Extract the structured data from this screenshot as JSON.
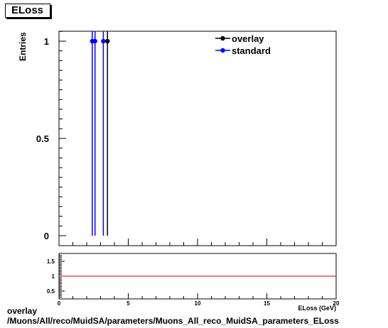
{
  "title": "ELoss",
  "caption_line1": "overlay",
  "caption_line2": "/Muons/All/reco/MuidSA/parameters/Muons_All_reco_MuidSA_parameters_ELoss",
  "chart_data": [
    {
      "type": "scatter",
      "ylabel": "Entries",
      "xlabel": "ELoss (GeV)",
      "xlim": [
        0,
        20
      ],
      "ylim": [
        0,
        1.05
      ],
      "yticks": [
        "0",
        "0.5",
        "1"
      ],
      "legend": {
        "placement": "top-right"
      },
      "series": [
        {
          "name": "overlay",
          "color": "#000000",
          "points": [
            {
              "x": 3.5,
              "y": 1
            }
          ]
        },
        {
          "name": "standard",
          "color": "#0000ff",
          "points": [
            {
              "x": 2.4,
              "y": 1
            },
            {
              "x": 2.6,
              "y": 1
            },
            {
              "x": 3.2,
              "y": 1
            }
          ]
        }
      ]
    },
    {
      "type": "line",
      "xlim": [
        0,
        20
      ],
      "ylim": [
        0.3,
        1.7
      ],
      "xticks": [
        "0",
        "5",
        "10",
        "15",
        "20"
      ],
      "yticks": [
        "0.5",
        "1",
        "1.5"
      ],
      "reference_line": {
        "y": 1,
        "color": "#cc0000"
      }
    }
  ]
}
